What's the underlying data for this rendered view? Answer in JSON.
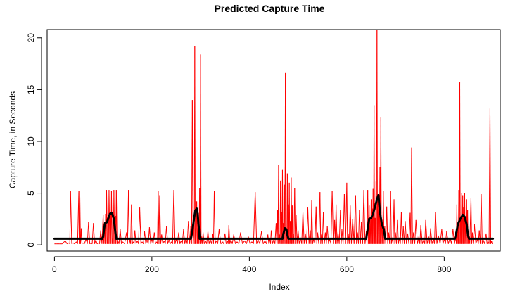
{
  "chart_data": {
    "type": "line",
    "title": "Predicted Capture Time",
    "xlabel": "Index",
    "ylabel": "Capture Time, in Seconds",
    "xlim": [
      -15,
      915
    ],
    "ylim": [
      -0.6,
      20.8
    ],
    "x_ticks": [
      0,
      200,
      400,
      600,
      800
    ],
    "y_ticks": [
      0,
      5,
      10,
      15,
      20
    ],
    "grid": false,
    "legend": "none",
    "series": [
      {
        "name": "",
        "color": "#ff0000",
        "style": "spikes",
        "baseline": 0.1,
        "points": [
          [
            0,
            0.1
          ],
          [
            10,
            0.1
          ],
          [
            22,
            0.4
          ],
          [
            30,
            0.2
          ],
          [
            33,
            5.2
          ],
          [
            38,
            0.2
          ],
          [
            45,
            0.3
          ],
          [
            50,
            5.2
          ],
          [
            52,
            5.2
          ],
          [
            55,
            1.6
          ],
          [
            58,
            0.2
          ],
          [
            65,
            0.6
          ],
          [
            70,
            2.2
          ],
          [
            75,
            0.2
          ],
          [
            80,
            2.1
          ],
          [
            85,
            0.5
          ],
          [
            90,
            0.2
          ],
          [
            95,
            1.4
          ],
          [
            100,
            2.9
          ],
          [
            103,
            2.2
          ],
          [
            105,
            3.0
          ],
          [
            107,
            5.3
          ],
          [
            110,
            0.8
          ],
          [
            112,
            5.3
          ],
          [
            115,
            3.1
          ],
          [
            117,
            5.2
          ],
          [
            120,
            0.7
          ],
          [
            122,
            5.3
          ],
          [
            125,
            2.8
          ],
          [
            127,
            5.3
          ],
          [
            130,
            0.4
          ],
          [
            135,
            1.5
          ],
          [
            140,
            0.3
          ],
          [
            148,
            1.2
          ],
          [
            152,
            5.3
          ],
          [
            155,
            0.5
          ],
          [
            158,
            3.9
          ],
          [
            162,
            0.3
          ],
          [
            165,
            1.4
          ],
          [
            170,
            0.4
          ],
          [
            175,
            3.6
          ],
          [
            180,
            0.3
          ],
          [
            185,
            1.3
          ],
          [
            190,
            0.5
          ],
          [
            195,
            1.7
          ],
          [
            200,
            0.6
          ],
          [
            205,
            1.2
          ],
          [
            210,
            0.3
          ],
          [
            213,
            5.2
          ],
          [
            216,
            4.8
          ],
          [
            220,
            1.0
          ],
          [
            225,
            0.4
          ],
          [
            230,
            1.8
          ],
          [
            235,
            0.5
          ],
          [
            240,
            0.3
          ],
          [
            245,
            5.3
          ],
          [
            250,
            0.6
          ],
          [
            255,
            1.2
          ],
          [
            260,
            0.4
          ],
          [
            265,
            1.5
          ],
          [
            270,
            0.7
          ],
          [
            275,
            2.3
          ],
          [
            280,
            1.8
          ],
          [
            283,
            14.0
          ],
          [
            286,
            2.1
          ],
          [
            288,
            19.2
          ],
          [
            290,
            1.5
          ],
          [
            292,
            4.2
          ],
          [
            295,
            2.4
          ],
          [
            298,
            5.5
          ],
          [
            300,
            18.4
          ],
          [
            302,
            0.8
          ],
          [
            305,
            1.2
          ],
          [
            310,
            0.4
          ],
          [
            315,
            1.3
          ],
          [
            320,
            0.5
          ],
          [
            325,
            1.1
          ],
          [
            328,
            5.2
          ],
          [
            332,
            0.4
          ],
          [
            338,
            1.5
          ],
          [
            345,
            0.3
          ],
          [
            350,
            1.1
          ],
          [
            355,
            0.4
          ],
          [
            358,
            1.9
          ],
          [
            362,
            0.5
          ],
          [
            368,
            1.0
          ],
          [
            375,
            0.3
          ],
          [
            382,
            1.2
          ],
          [
            390,
            0.4
          ],
          [
            398,
            0.8
          ],
          [
            405,
            0.3
          ],
          [
            412,
            5.1
          ],
          [
            418,
            0.5
          ],
          [
            425,
            1.3
          ],
          [
            432,
            0.4
          ],
          [
            438,
            1.0
          ],
          [
            442,
            0.6
          ],
          [
            445,
            1.4
          ],
          [
            450,
            0.5
          ],
          [
            455,
            2.1
          ],
          [
            458,
            3.4
          ],
          [
            460,
            7.7
          ],
          [
            462,
            1.0
          ],
          [
            464,
            6.2
          ],
          [
            466,
            3.2
          ],
          [
            468,
            7.3
          ],
          [
            470,
            2.1
          ],
          [
            472,
            5.8
          ],
          [
            474,
            16.6
          ],
          [
            476,
            1.5
          ],
          [
            478,
            6.9
          ],
          [
            480,
            3.9
          ],
          [
            482,
            6.0
          ],
          [
            484,
            2.3
          ],
          [
            486,
            6.5
          ],
          [
            488,
            3.8
          ],
          [
            490,
            1.1
          ],
          [
            493,
            5.5
          ],
          [
            496,
            2.9
          ],
          [
            500,
            1.4
          ],
          [
            505,
            0.7
          ],
          [
            510,
            3.2
          ],
          [
            515,
            1.1
          ],
          [
            520,
            3.6
          ],
          [
            525,
            1.4
          ],
          [
            528,
            4.3
          ],
          [
            532,
            0.6
          ],
          [
            537,
            3.7
          ],
          [
            540,
            1.2
          ],
          [
            545,
            5.1
          ],
          [
            548,
            1.0
          ],
          [
            552,
            3.2
          ],
          [
            556,
            1.2
          ],
          [
            560,
            1.8
          ],
          [
            565,
            0.6
          ],
          [
            570,
            5.2
          ],
          [
            575,
            2.4
          ],
          [
            578,
            3.9
          ],
          [
            582,
            1.2
          ],
          [
            587,
            3.4
          ],
          [
            590,
            1.5
          ],
          [
            595,
            4.9
          ],
          [
            600,
            6.0
          ],
          [
            603,
            1.1
          ],
          [
            607,
            3.8
          ],
          [
            612,
            2.5
          ],
          [
            618,
            4.8
          ],
          [
            622,
            1.2
          ],
          [
            626,
            3.4
          ],
          [
            630,
            2.2
          ],
          [
            635,
            5.3
          ],
          [
            640,
            1.3
          ],
          [
            643,
            5.3
          ],
          [
            646,
            3.8
          ],
          [
            648,
            2.5
          ],
          [
            650,
            4.4
          ],
          [
            652,
            3.5
          ],
          [
            654,
            5.4
          ],
          [
            656,
            13.5
          ],
          [
            658,
            2.6
          ],
          [
            660,
            6.1
          ],
          [
            662,
            21.5
          ],
          [
            664,
            4.8
          ],
          [
            666,
            3.6
          ],
          [
            668,
            7.5
          ],
          [
            670,
            12.3
          ],
          [
            672,
            2.4
          ],
          [
            675,
            5.2
          ],
          [
            678,
            1.8
          ],
          [
            682,
            3.7
          ],
          [
            686,
            1.2
          ],
          [
            690,
            5.2
          ],
          [
            693,
            0.7
          ],
          [
            697,
            4.4
          ],
          [
            700,
            1.2
          ],
          [
            704,
            2.4
          ],
          [
            708,
            0.7
          ],
          [
            712,
            3.2
          ],
          [
            716,
            1.8
          ],
          [
            720,
            2.3
          ],
          [
            725,
            1.1
          ],
          [
            730,
            3.1
          ],
          [
            733,
            9.4
          ],
          [
            737,
            1.2
          ],
          [
            742,
            2.4
          ],
          [
            748,
            0.8
          ],
          [
            752,
            1.9
          ],
          [
            758,
            0.5
          ],
          [
            762,
            2.4
          ],
          [
            768,
            0.8
          ],
          [
            772,
            1.6
          ],
          [
            778,
            0.6
          ],
          [
            782,
            3.2
          ],
          [
            788,
            0.9
          ],
          [
            795,
            1.5
          ],
          [
            800,
            0.6
          ],
          [
            805,
            1.3
          ],
          [
            812,
            0.7
          ],
          [
            818,
            1.5
          ],
          [
            824,
            0.8
          ],
          [
            826,
            3.9
          ],
          [
            828,
            2.0
          ],
          [
            830,
            5.3
          ],
          [
            832,
            15.7
          ],
          [
            834,
            2.6
          ],
          [
            836,
            5.0
          ],
          [
            838,
            4.8
          ],
          [
            840,
            3.6
          ],
          [
            842,
            5.0
          ],
          [
            844,
            2.2
          ],
          [
            846,
            4.4
          ],
          [
            848,
            3.4
          ],
          [
            850,
            1.1
          ],
          [
            855,
            4.5
          ],
          [
            858,
            1.2
          ],
          [
            862,
            2.0
          ],
          [
            868,
            0.6
          ],
          [
            872,
            1.4
          ],
          [
            876,
            4.9
          ],
          [
            880,
            0.5
          ],
          [
            886,
            1.1
          ],
          [
            890,
            0.3
          ],
          [
            894,
            13.2
          ],
          [
            897,
            0.4
          ],
          [
            900,
            0.2
          ]
        ]
      },
      {
        "name": "",
        "color": "#000000",
        "style": "line",
        "points": [
          [
            0,
            0.6
          ],
          [
            98,
            0.6
          ],
          [
            100,
            0.8
          ],
          [
            102,
            1.6
          ],
          [
            104,
            2.1
          ],
          [
            108,
            2.2
          ],
          [
            110,
            2.5
          ],
          [
            114,
            3.0
          ],
          [
            118,
            3.1
          ],
          [
            122,
            2.5
          ],
          [
            125,
            1.2
          ],
          [
            127,
            0.6
          ],
          [
            280,
            0.6
          ],
          [
            283,
            1.3
          ],
          [
            286,
            2.4
          ],
          [
            289,
            3.3
          ],
          [
            292,
            3.5
          ],
          [
            294,
            3.0
          ],
          [
            296,
            1.8
          ],
          [
            298,
            0.6
          ],
          [
            468,
            0.6
          ],
          [
            470,
            1.1
          ],
          [
            473,
            1.6
          ],
          [
            476,
            1.5
          ],
          [
            478,
            1.0
          ],
          [
            480,
            0.6
          ],
          [
            640,
            0.6
          ],
          [
            643,
            1.6
          ],
          [
            646,
            2.5
          ],
          [
            650,
            2.6
          ],
          [
            654,
            3.0
          ],
          [
            658,
            3.7
          ],
          [
            662,
            4.4
          ],
          [
            665,
            4.8
          ],
          [
            668,
            3.2
          ],
          [
            672,
            2.0
          ],
          [
            676,
            1.5
          ],
          [
            679,
            0.6
          ],
          [
            822,
            0.6
          ],
          [
            825,
            1.2
          ],
          [
            828,
            2.0
          ],
          [
            833,
            2.5
          ],
          [
            838,
            2.9
          ],
          [
            842,
            2.7
          ],
          [
            846,
            2.0
          ],
          [
            849,
            0.9
          ],
          [
            851,
            0.6
          ],
          [
            900,
            0.6
          ]
        ]
      }
    ]
  }
}
